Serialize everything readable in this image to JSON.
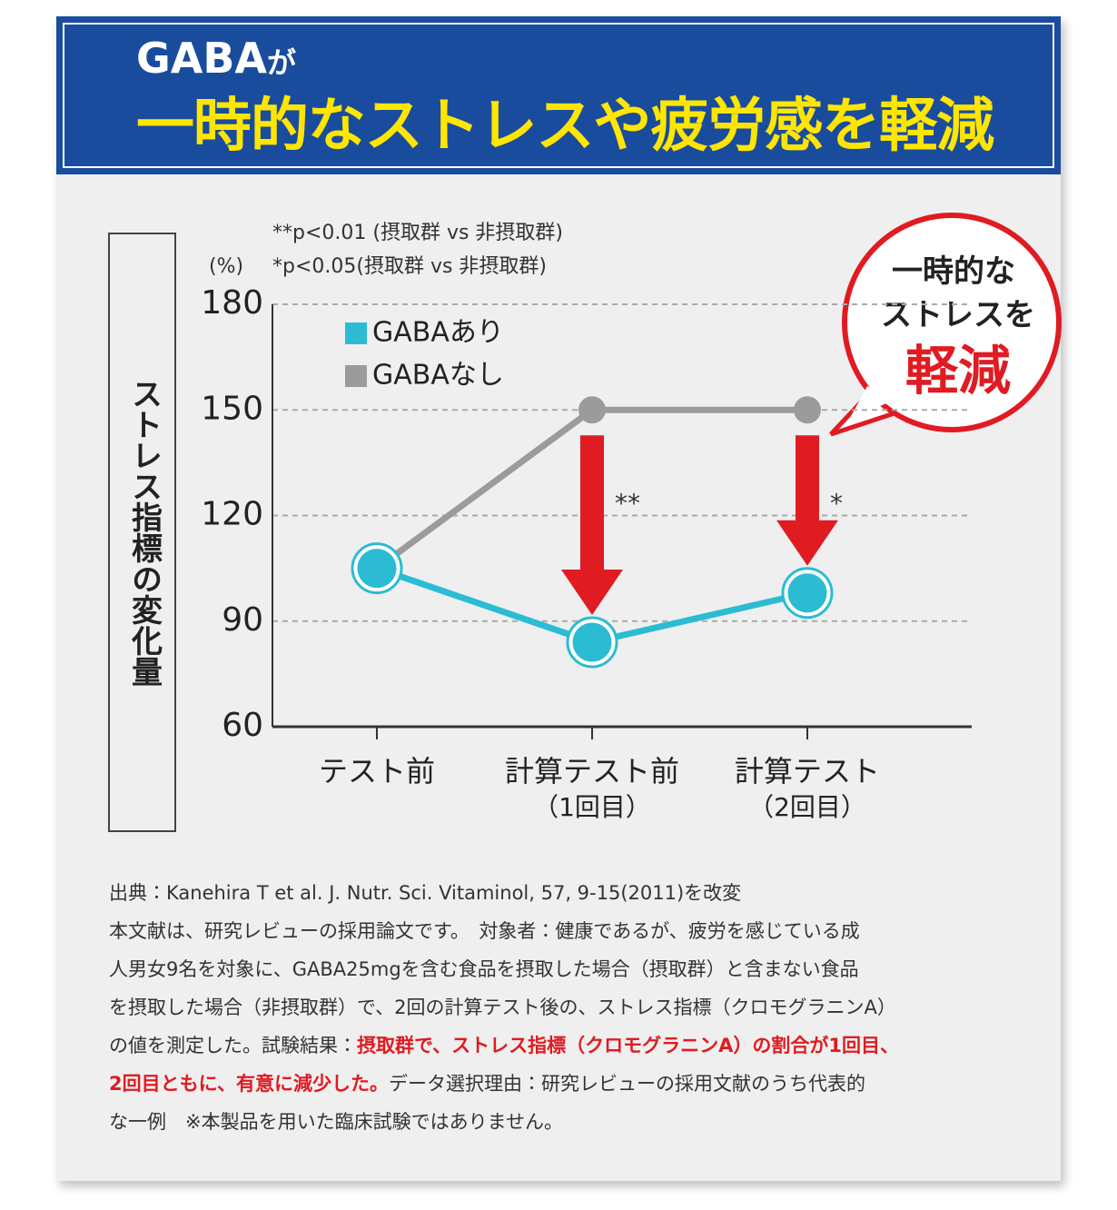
{
  "header": {
    "title_main": "GABA",
    "title_suffix": "が",
    "title_line2": "一時的なストレスや疲労感を軽減"
  },
  "chart_data": {
    "type": "line",
    "y_label": "ストレス指標の変化量",
    "y_unit": "(%)",
    "annotations": [
      "**p<0.01 (摂取群 vs 非摂取群)",
      "*p<0.05(摂取群 vs 非摂取群)"
    ],
    "categories": [
      "テスト前",
      "計算テスト前",
      "計算テスト"
    ],
    "category_sublabels": [
      null,
      "（1回目）",
      "（2回目）"
    ],
    "significance": [
      null,
      "**",
      "*"
    ],
    "series": [
      {
        "name": "GABAあり",
        "color": "#2bbcd4",
        "values": [
          105,
          84,
          98
        ]
      },
      {
        "name": "GABAなし",
        "color": "#9b9b9b",
        "values": [
          105,
          150,
          150
        ]
      }
    ],
    "ylim": [
      60,
      180
    ],
    "yticks": [
      60,
      90,
      120,
      150,
      180
    ],
    "grid": true
  },
  "callout": {
    "lines": [
      "一時的な",
      "ストレスを"
    ],
    "emphasis": "軽減"
  },
  "notes": {
    "source": "出典：Kanehira T et al. J. Nutr. Sci. Vitaminol, 57, 9-15(2011)を改変",
    "lines": [
      [
        {
          "text": "本文献は、研究レビューの採用論文です。　対象者：健康であるが、疲労を感じている成",
          "emphasis": false
        }
      ],
      [
        {
          "text": "人男女9名を対象に、GABA25mgを含む食品を摂取した場合（摂取群）と含まない食品",
          "emphasis": false
        }
      ],
      [
        {
          "text": "を摂取した場合（非摂取群）で、2回の計算テスト後の、ストレス指標（クロモグラニンA）",
          "emphasis": false
        }
      ],
      [
        {
          "text": "の値を測定した。試験結果：",
          "emphasis": false
        },
        {
          "text": "摂取群で、ストレス指標（クロモグラニンA）の割合が1回目、",
          "emphasis": true
        }
      ],
      [
        {
          "text": "2回目ともに、有意に減少した。",
          "emphasis": true
        },
        {
          "text": "データ選択理由：研究レビューの採用文献のうち代表的",
          "emphasis": false
        }
      ],
      [
        {
          "text": "な一例　※本製品を用いた臨床試験ではありません。",
          "emphasis": false
        }
      ]
    ]
  }
}
